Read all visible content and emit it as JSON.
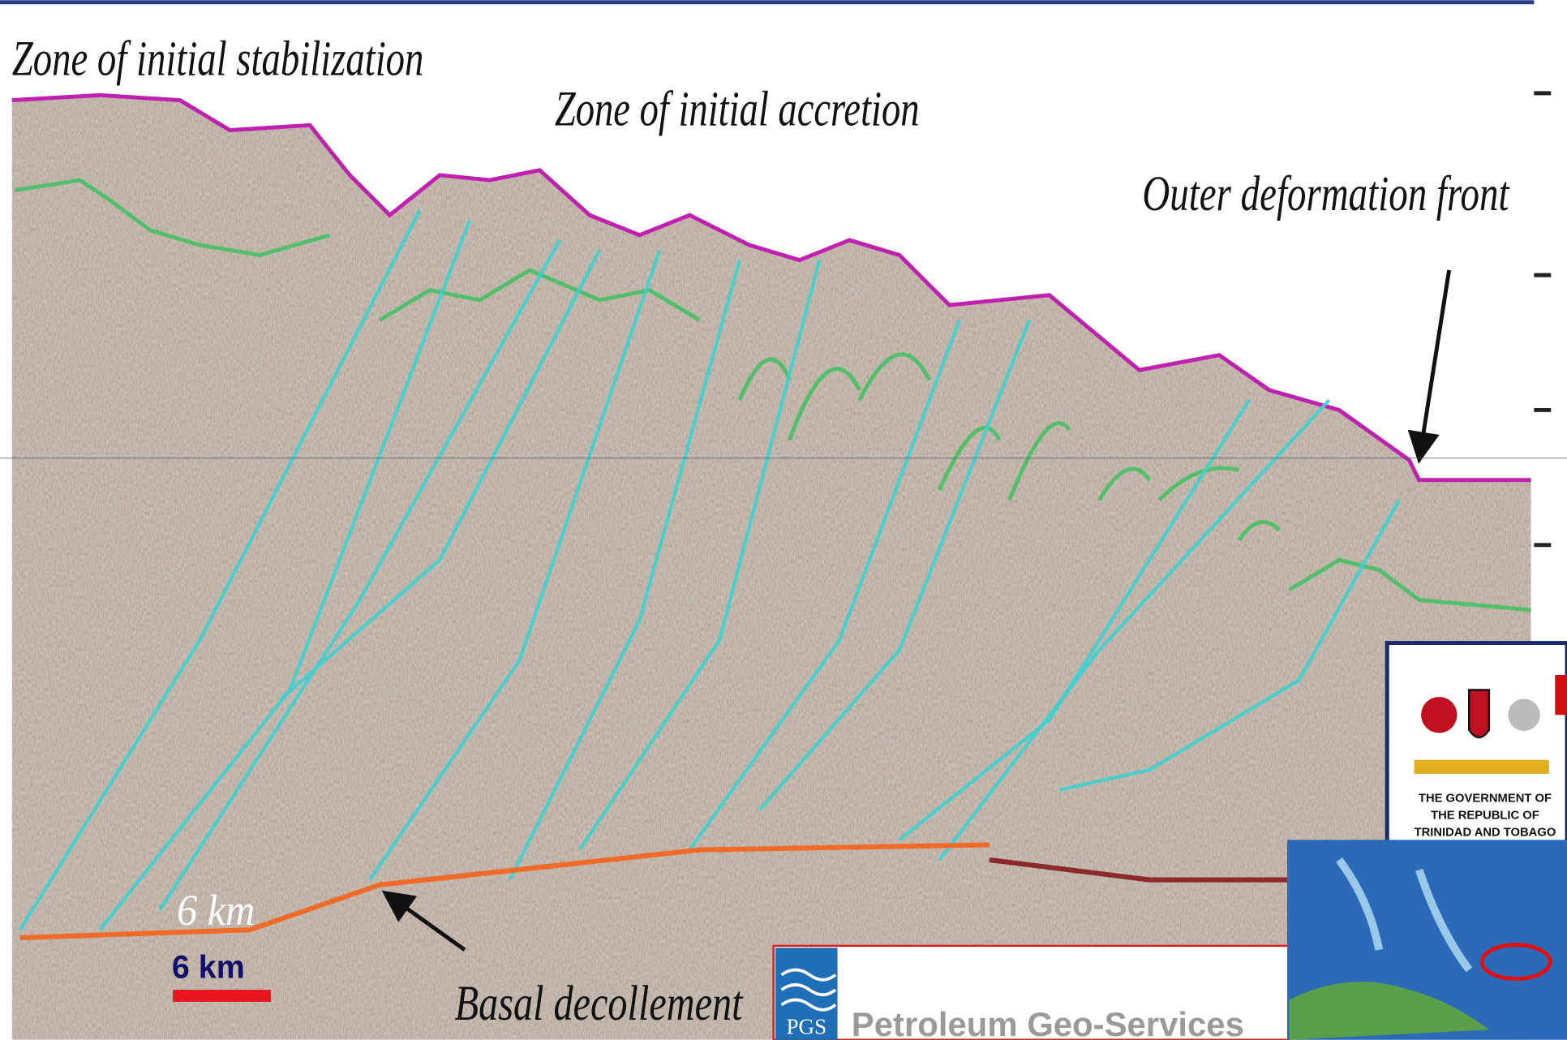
{
  "labels": {
    "stabilization": "Zone of initial stabilization",
    "accretion": "Zone of initial accretion",
    "front": "Outer deformation front",
    "decollement": "Basal decollement"
  },
  "scale_bar": {
    "seismic_label": "6 km",
    "label": "6 km"
  },
  "logos": {
    "pgs": {
      "mark": "PGS",
      "name": "Petroleum Geo-Services"
    },
    "government": {
      "lines": [
        "THE GOVERNMENT OF",
        "THE REPUBLIC OF",
        "TRINIDAD AND TOBAGO"
      ]
    }
  }
}
